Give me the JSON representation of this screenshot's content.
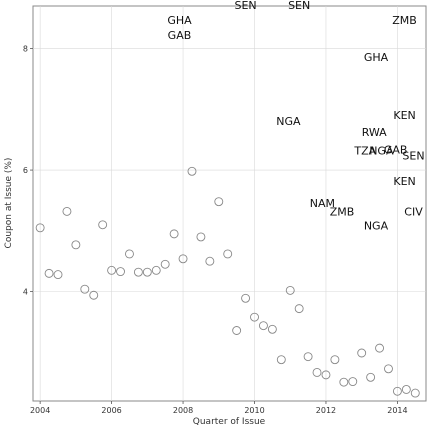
{
  "chart_data": {
    "type": "scatter",
    "title": "",
    "xlabel": "Quarter of Issue",
    "ylabel": "Coupon at Issue (%)",
    "xlim": [
      2003.8,
      2014.8
    ],
    "ylim": [
      2.2,
      8.7
    ],
    "x_ticks": [
      2004,
      2006,
      2008,
      2010,
      2012,
      2014
    ],
    "x_tick_labels": [
      "2004",
      "2006",
      "2008",
      "2010",
      "2012",
      "2014"
    ],
    "y_ticks": [
      4,
      6,
      8
    ],
    "y_tick_labels": [
      "4",
      "6",
      "8"
    ],
    "grid": true,
    "colors": {
      "panel_border": "#888888",
      "grid": "#d9d9d9",
      "marker": "#888888",
      "text": "#111111"
    },
    "points": [
      {
        "x": 2004.0,
        "y": 5.05
      },
      {
        "x": 2004.25,
        "y": 4.3
      },
      {
        "x": 2004.5,
        "y": 4.28
      },
      {
        "x": 2004.75,
        "y": 5.32
      },
      {
        "x": 2005.0,
        "y": 4.77
      },
      {
        "x": 2005.25,
        "y": 4.04
      },
      {
        "x": 2005.5,
        "y": 3.94
      },
      {
        "x": 2005.75,
        "y": 5.1
      },
      {
        "x": 2006.0,
        "y": 4.35
      },
      {
        "x": 2006.25,
        "y": 4.33
      },
      {
        "x": 2006.5,
        "y": 4.62
      },
      {
        "x": 2006.75,
        "y": 4.32
      },
      {
        "x": 2007.0,
        "y": 4.32
      },
      {
        "x": 2007.25,
        "y": 4.35
      },
      {
        "x": 2007.5,
        "y": 4.45
      },
      {
        "x": 2007.75,
        "y": 4.95
      },
      {
        "x": 2008.0,
        "y": 4.54
      },
      {
        "x": 2008.25,
        "y": 5.98
      },
      {
        "x": 2008.5,
        "y": 4.9
      },
      {
        "x": 2008.75,
        "y": 4.5
      },
      {
        "x": 2009.0,
        "y": 5.48
      },
      {
        "x": 2009.25,
        "y": 4.62
      },
      {
        "x": 2009.5,
        "y": 3.36
      },
      {
        "x": 2009.75,
        "y": 3.89
      },
      {
        "x": 2010.0,
        "y": 3.58
      },
      {
        "x": 2010.25,
        "y": 3.44
      },
      {
        "x": 2010.5,
        "y": 3.38
      },
      {
        "x": 2010.75,
        "y": 2.88
      },
      {
        "x": 2011.0,
        "y": 4.02
      },
      {
        "x": 2011.25,
        "y": 3.72
      },
      {
        "x": 2011.5,
        "y": 2.93
      },
      {
        "x": 2011.75,
        "y": 2.67
      },
      {
        "x": 2012.0,
        "y": 2.63
      },
      {
        "x": 2012.25,
        "y": 2.88
      },
      {
        "x": 2012.5,
        "y": 2.51
      },
      {
        "x": 2012.75,
        "y": 2.52
      },
      {
        "x": 2013.0,
        "y": 2.99
      },
      {
        "x": 2013.25,
        "y": 2.59
      },
      {
        "x": 2013.5,
        "y": 3.07
      },
      {
        "x": 2013.75,
        "y": 2.73
      },
      {
        "x": 2014.0,
        "y": 2.36
      },
      {
        "x": 2014.25,
        "y": 2.39
      },
      {
        "x": 2014.5,
        "y": 2.33
      }
    ],
    "labels": [
      {
        "text": "SEN",
        "x": 2009.75,
        "y": 8.72
      },
      {
        "text": "SEN",
        "x": 2011.25,
        "y": 8.72
      },
      {
        "text": "GHA",
        "x": 2007.9,
        "y": 8.47
      },
      {
        "text": "GAB",
        "x": 2007.9,
        "y": 8.22
      },
      {
        "text": "ZMB",
        "x": 2014.2,
        "y": 8.47
      },
      {
        "text": "GHA",
        "x": 2013.4,
        "y": 7.86
      },
      {
        "text": "NGA",
        "x": 2010.95,
        "y": 6.81
      },
      {
        "text": "KEN",
        "x": 2014.2,
        "y": 6.91
      },
      {
        "text": "RWA",
        "x": 2013.35,
        "y": 6.63
      },
      {
        "text": "TZA",
        "x": 2013.1,
        "y": 6.32
      },
      {
        "text": "NGA",
        "x": 2013.55,
        "y": 6.32
      },
      {
        "text": "GAB",
        "x": 2013.95,
        "y": 6.34
      },
      {
        "text": "SEN",
        "x": 2014.45,
        "y": 6.24
      },
      {
        "text": "KEN",
        "x": 2014.2,
        "y": 5.82
      },
      {
        "text": "NAM",
        "x": 2011.9,
        "y": 5.46
      },
      {
        "text": "ZMB",
        "x": 2012.45,
        "y": 5.32
      },
      {
        "text": "NGA",
        "x": 2013.4,
        "y": 5.09
      },
      {
        "text": "CIV",
        "x": 2014.45,
        "y": 5.32
      }
    ]
  }
}
